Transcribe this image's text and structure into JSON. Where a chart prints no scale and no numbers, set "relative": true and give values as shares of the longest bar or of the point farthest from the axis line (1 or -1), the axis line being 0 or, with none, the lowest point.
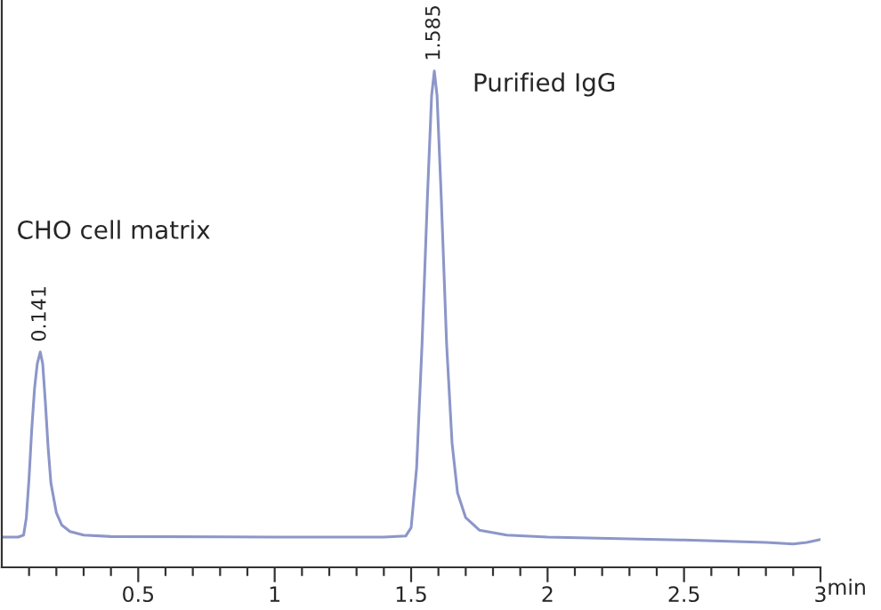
{
  "chart_data": {
    "type": "line",
    "relative": true,
    "xlabel": "min",
    "xlim": [
      0,
      3
    ],
    "xticks": [
      {
        "value": 0.1,
        "label": null
      },
      {
        "value": 0.2,
        "label": null
      },
      {
        "value": 0.3,
        "label": null
      },
      {
        "value": 0.4,
        "label": null
      },
      0.5,
      {
        "value": 0.6,
        "label": null
      },
      {
        "value": 0.7,
        "label": null
      },
      {
        "value": 0.8,
        "label": null
      },
      {
        "value": 0.9,
        "label": null
      },
      1,
      {
        "value": 1.1,
        "label": null
      },
      {
        "value": 1.2,
        "label": null
      },
      {
        "value": 1.3,
        "label": null
      },
      {
        "value": 1.4,
        "label": null
      },
      1.5,
      {
        "value": 1.6,
        "label": null
      },
      {
        "value": 1.7,
        "label": null
      },
      {
        "value": 1.8,
        "label": null
      },
      {
        "value": 1.9,
        "label": null
      },
      2,
      {
        "value": 2.1,
        "label": null
      },
      {
        "value": 2.2,
        "label": null
      },
      {
        "value": 2.3,
        "label": null
      },
      {
        "value": 2.4,
        "label": null
      },
      2.5,
      {
        "value": 2.6,
        "label": null
      },
      {
        "value": 2.7,
        "label": null
      },
      {
        "value": 2.8,
        "label": null
      },
      {
        "value": 2.9,
        "label": null
      },
      3
    ],
    "tick_labels": "x",
    "grid": false,
    "legend": false,
    "series": [
      {
        "color": "#8c96c8",
        "x": [
          0,
          0.06,
          0.08,
          0.09,
          0.1,
          0.11,
          0.12,
          0.13,
          0.141,
          0.15,
          0.16,
          0.17,
          0.18,
          0.2,
          0.22,
          0.25,
          0.3,
          0.4,
          1.0,
          1.4,
          1.48,
          1.5,
          1.52,
          1.54,
          1.56,
          1.575,
          1.585,
          1.595,
          1.61,
          1.63,
          1.65,
          1.67,
          1.7,
          1.75,
          1.85,
          2.0,
          2.5,
          2.8,
          2.9,
          2.95,
          3.0
        ],
        "values": [
          0.061,
          0.061,
          0.065,
          0.1,
          0.18,
          0.28,
          0.36,
          0.41,
          0.434,
          0.41,
          0.33,
          0.24,
          0.17,
          0.11,
          0.085,
          0.072,
          0.065,
          0.062,
          0.061,
          0.061,
          0.063,
          0.08,
          0.2,
          0.45,
          0.75,
          0.95,
          1,
          0.95,
          0.75,
          0.45,
          0.25,
          0.15,
          0.1,
          0.075,
          0.065,
          0.061,
          0.055,
          0.05,
          0.047,
          0.05,
          0.056
        ]
      }
    ],
    "annotations": [
      {
        "text": "0.141",
        "x": 0.141,
        "y": 0.434
      },
      {
        "text": "1.585",
        "x": 1.585,
        "y": 1
      },
      "CHO cell matrix",
      "Purified IgG"
    ]
  }
}
